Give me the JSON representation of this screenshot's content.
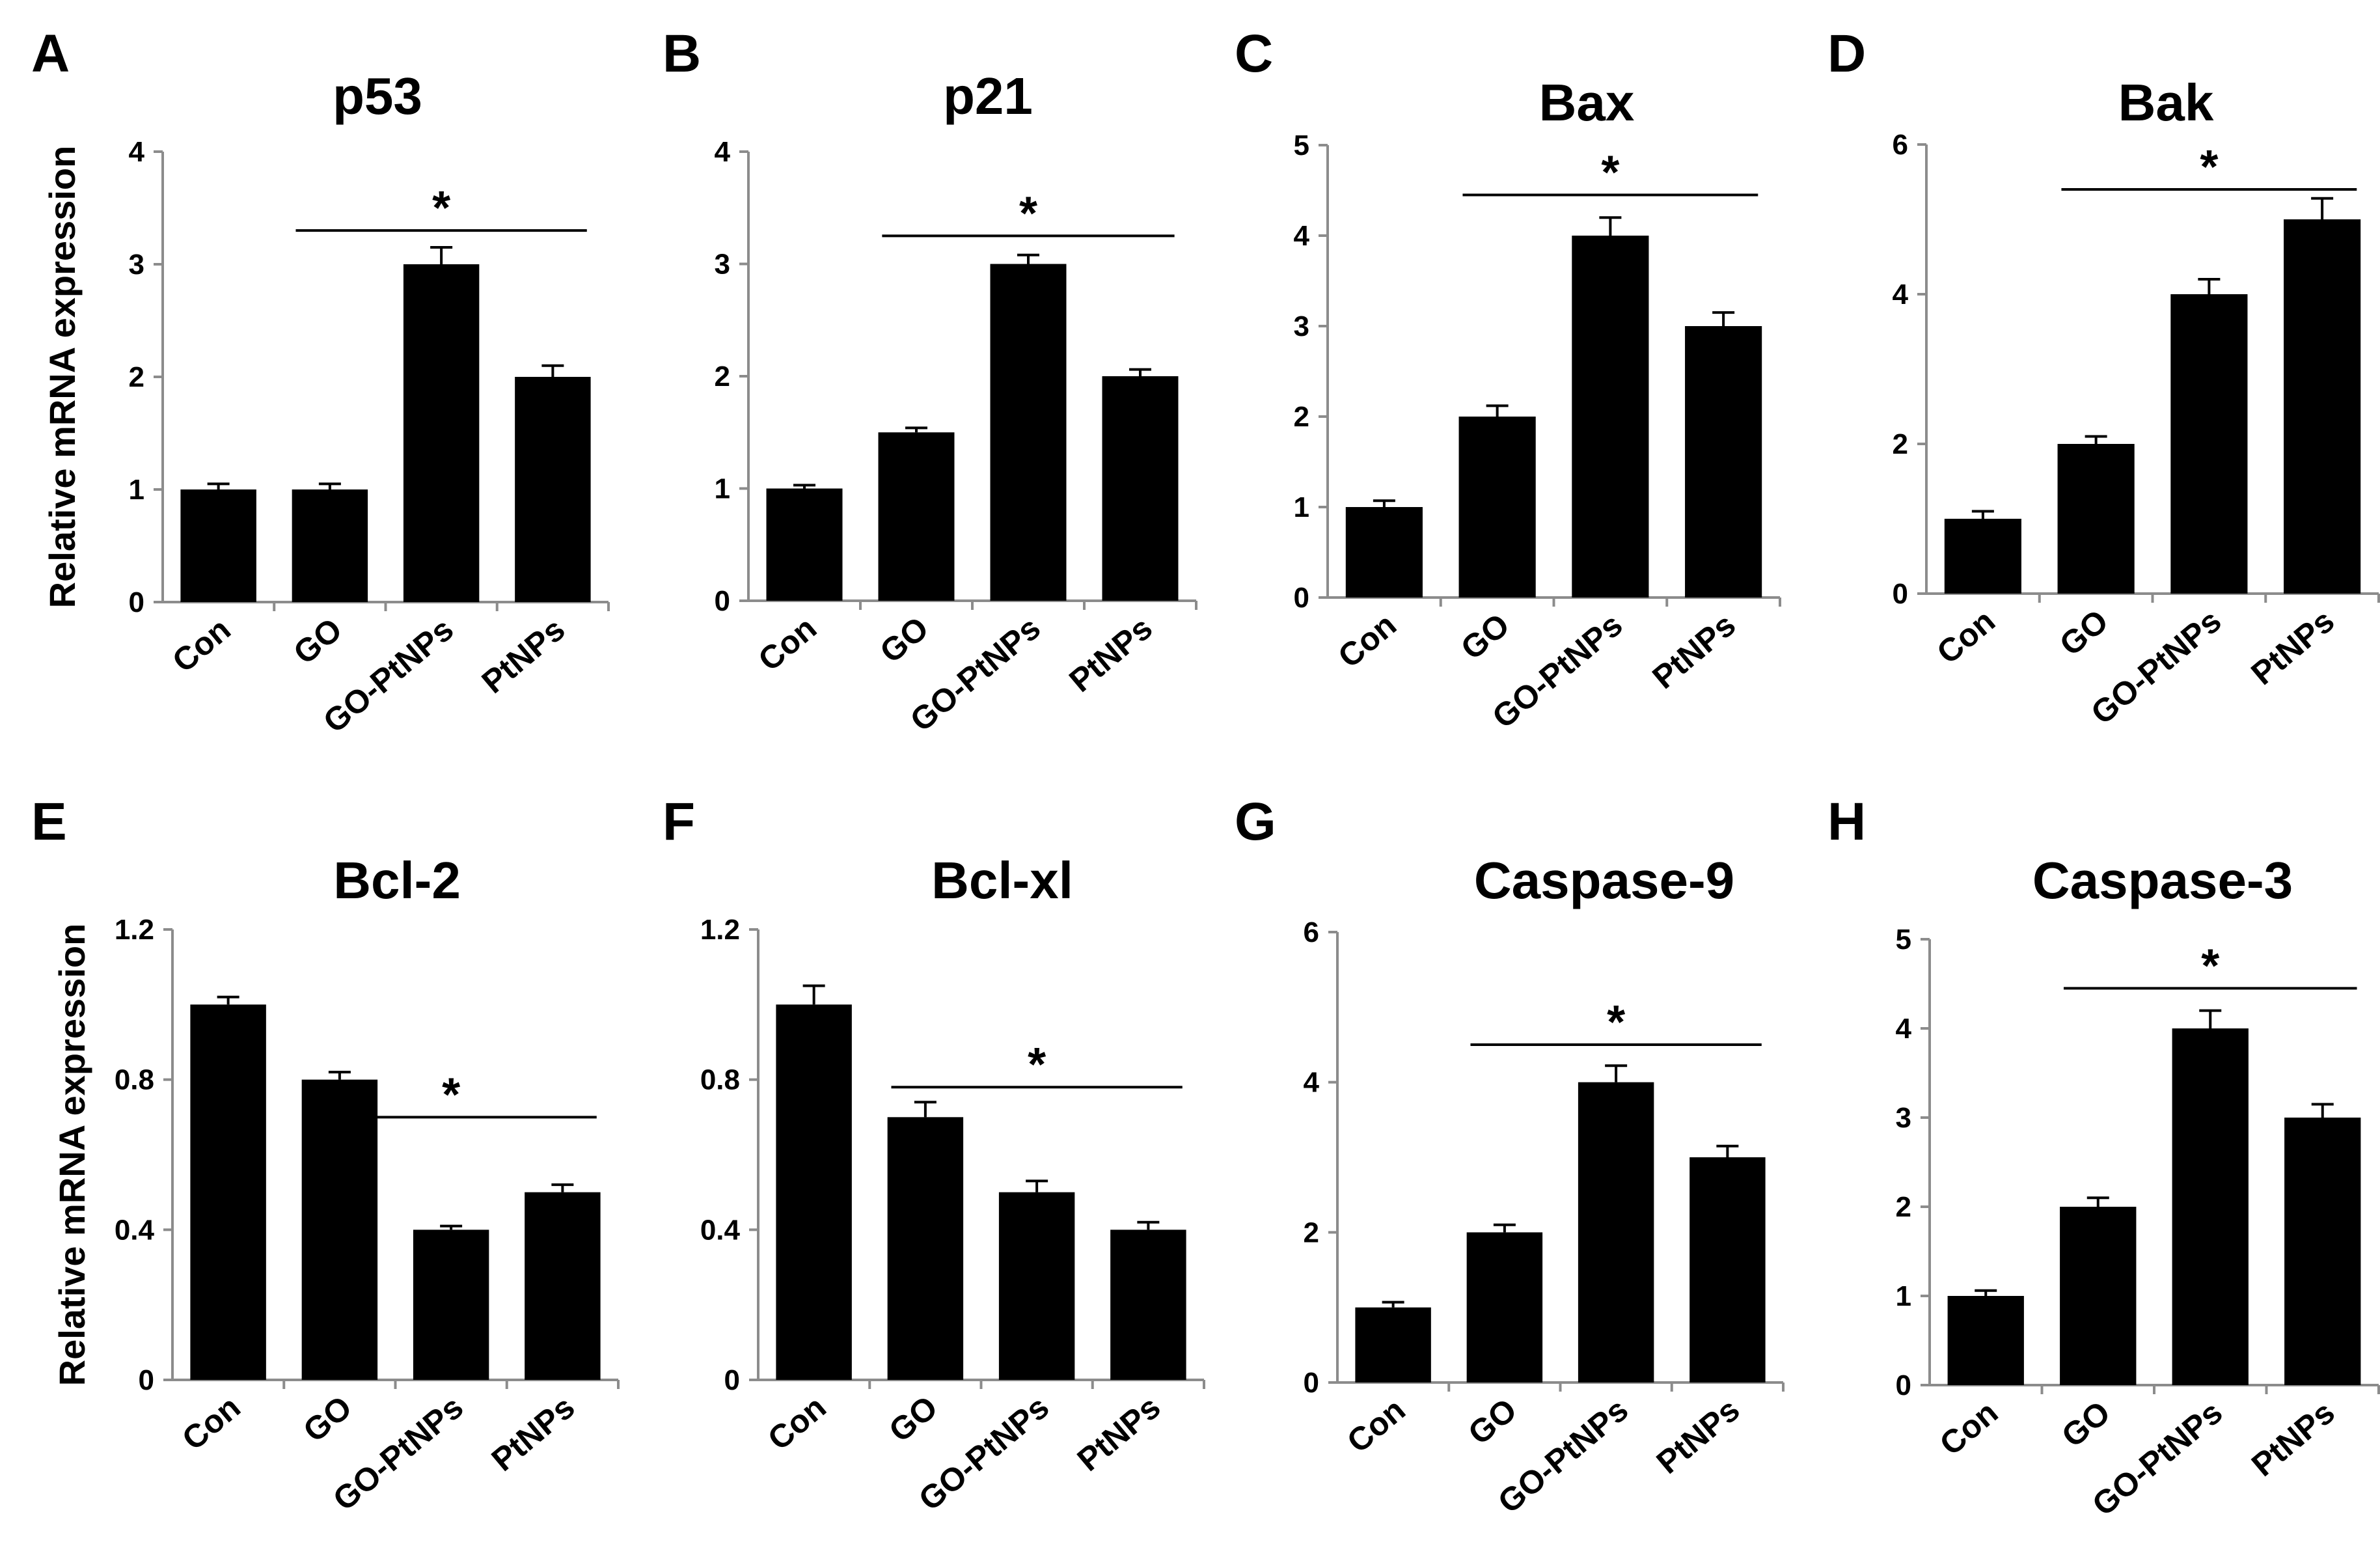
{
  "figure": {
    "ylabel": "Relative mRNA expression"
  },
  "chart_data": [
    {
      "letter": "A",
      "type": "bar",
      "title": "p53",
      "categories": [
        "Con",
        "GO",
        "GO-PtNPs",
        "PtNPs"
      ],
      "values": [
        1.0,
        1.0,
        3.0,
        2.0
      ],
      "errors": [
        0.05,
        0.05,
        0.15,
        0.1
      ],
      "ylim": [
        0,
        4
      ],
      "yticks": [
        "0",
        "1",
        "2",
        "3",
        "4"
      ],
      "ylabel": "Relative mRNA expression",
      "significance": {
        "from": 1,
        "to": 3,
        "label": "*",
        "y": 3.3
      }
    },
    {
      "letter": "B",
      "type": "bar",
      "title": "p21",
      "categories": [
        "Con",
        "GO",
        "GO-PtNPs",
        "PtNPs"
      ],
      "values": [
        1.0,
        1.5,
        3.0,
        2.0
      ],
      "errors": [
        0.03,
        0.04,
        0.08,
        0.06
      ],
      "ylim": [
        0,
        4
      ],
      "yticks": [
        "0",
        "1",
        "2",
        "3",
        "4"
      ],
      "ylabel": "",
      "significance": {
        "from": 1,
        "to": 3,
        "label": "*",
        "y": 3.25
      }
    },
    {
      "letter": "C",
      "type": "bar",
      "title": "Bax",
      "categories": [
        "Con",
        "GO",
        "GO-PtNPs",
        "PtNPs"
      ],
      "values": [
        1.0,
        2.0,
        4.0,
        3.0
      ],
      "errors": [
        0.07,
        0.12,
        0.2,
        0.15
      ],
      "ylim": [
        0,
        5
      ],
      "yticks": [
        "0",
        "1",
        "2",
        "3",
        "4",
        "5"
      ],
      "ylabel": "",
      "significance": {
        "from": 1,
        "to": 3,
        "label": "*",
        "y": 4.45
      }
    },
    {
      "letter": "D",
      "type": "bar",
      "title": "Bak",
      "categories": [
        "Con",
        "GO",
        "GO-PtNPs",
        "PtNPs"
      ],
      "values": [
        1.0,
        2.0,
        4.0,
        5.0
      ],
      "errors": [
        0.1,
        0.1,
        0.2,
        0.28
      ],
      "ylim": [
        0,
        6
      ],
      "yticks": [
        "0",
        "2",
        "4",
        "6"
      ],
      "ylabel": "",
      "significance": {
        "from": 1,
        "to": 3,
        "label": "*",
        "y": 5.4
      }
    },
    {
      "letter": "E",
      "type": "bar",
      "title": "Bcl-2",
      "categories": [
        "Con",
        "GO",
        "GO-PtNPs",
        "PtNPs"
      ],
      "values": [
        1.0,
        0.8,
        0.4,
        0.5
      ],
      "errors": [
        0.02,
        0.02,
        0.01,
        0.02
      ],
      "ylim": [
        0,
        1.2
      ],
      "yticks": [
        "0",
        "0.4",
        "0.8",
        "1.2"
      ],
      "ylabel": "Relative mRNA expression",
      "significance": {
        "from": 1,
        "to": 3,
        "label": "*",
        "y": 0.7
      }
    },
    {
      "letter": "F",
      "type": "bar",
      "title": "Bcl-xl",
      "categories": [
        "Con",
        "GO",
        "GO-PtNPs",
        "PtNPs"
      ],
      "values": [
        1.0,
        0.7,
        0.5,
        0.4
      ],
      "errors": [
        0.05,
        0.04,
        0.03,
        0.02
      ],
      "ylim": [
        0,
        1.2
      ],
      "yticks": [
        "0",
        "0.4",
        "0.8",
        "1.2"
      ],
      "ylabel": "",
      "significance": {
        "from": 1,
        "to": 3,
        "label": "*",
        "y": 0.78
      }
    },
    {
      "letter": "G",
      "type": "bar",
      "title": "Caspase-9",
      "categories": [
        "Con",
        "GO",
        "GO-PtNPs",
        "PtNPs"
      ],
      "values": [
        1.0,
        2.0,
        4.0,
        3.0
      ],
      "errors": [
        0.07,
        0.1,
        0.22,
        0.15
      ],
      "ylim": [
        0,
        6
      ],
      "yticks": [
        "0",
        "2",
        "4",
        "6"
      ],
      "ylabel": "",
      "significance": {
        "from": 1,
        "to": 3,
        "label": "*",
        "y": 4.5
      }
    },
    {
      "letter": "H",
      "type": "bar",
      "title": "Caspase-3",
      "categories": [
        "Con",
        "GO",
        "GO-PtNPs",
        "PtNPs"
      ],
      "values": [
        1.0,
        2.0,
        4.0,
        3.0
      ],
      "errors": [
        0.06,
        0.1,
        0.2,
        0.15
      ],
      "ylim": [
        0,
        5
      ],
      "yticks": [
        "0",
        "1",
        "2",
        "3",
        "4",
        "5"
      ],
      "ylabel": "",
      "significance": {
        "from": 1,
        "to": 3,
        "label": "*",
        "y": 4.45
      }
    }
  ]
}
